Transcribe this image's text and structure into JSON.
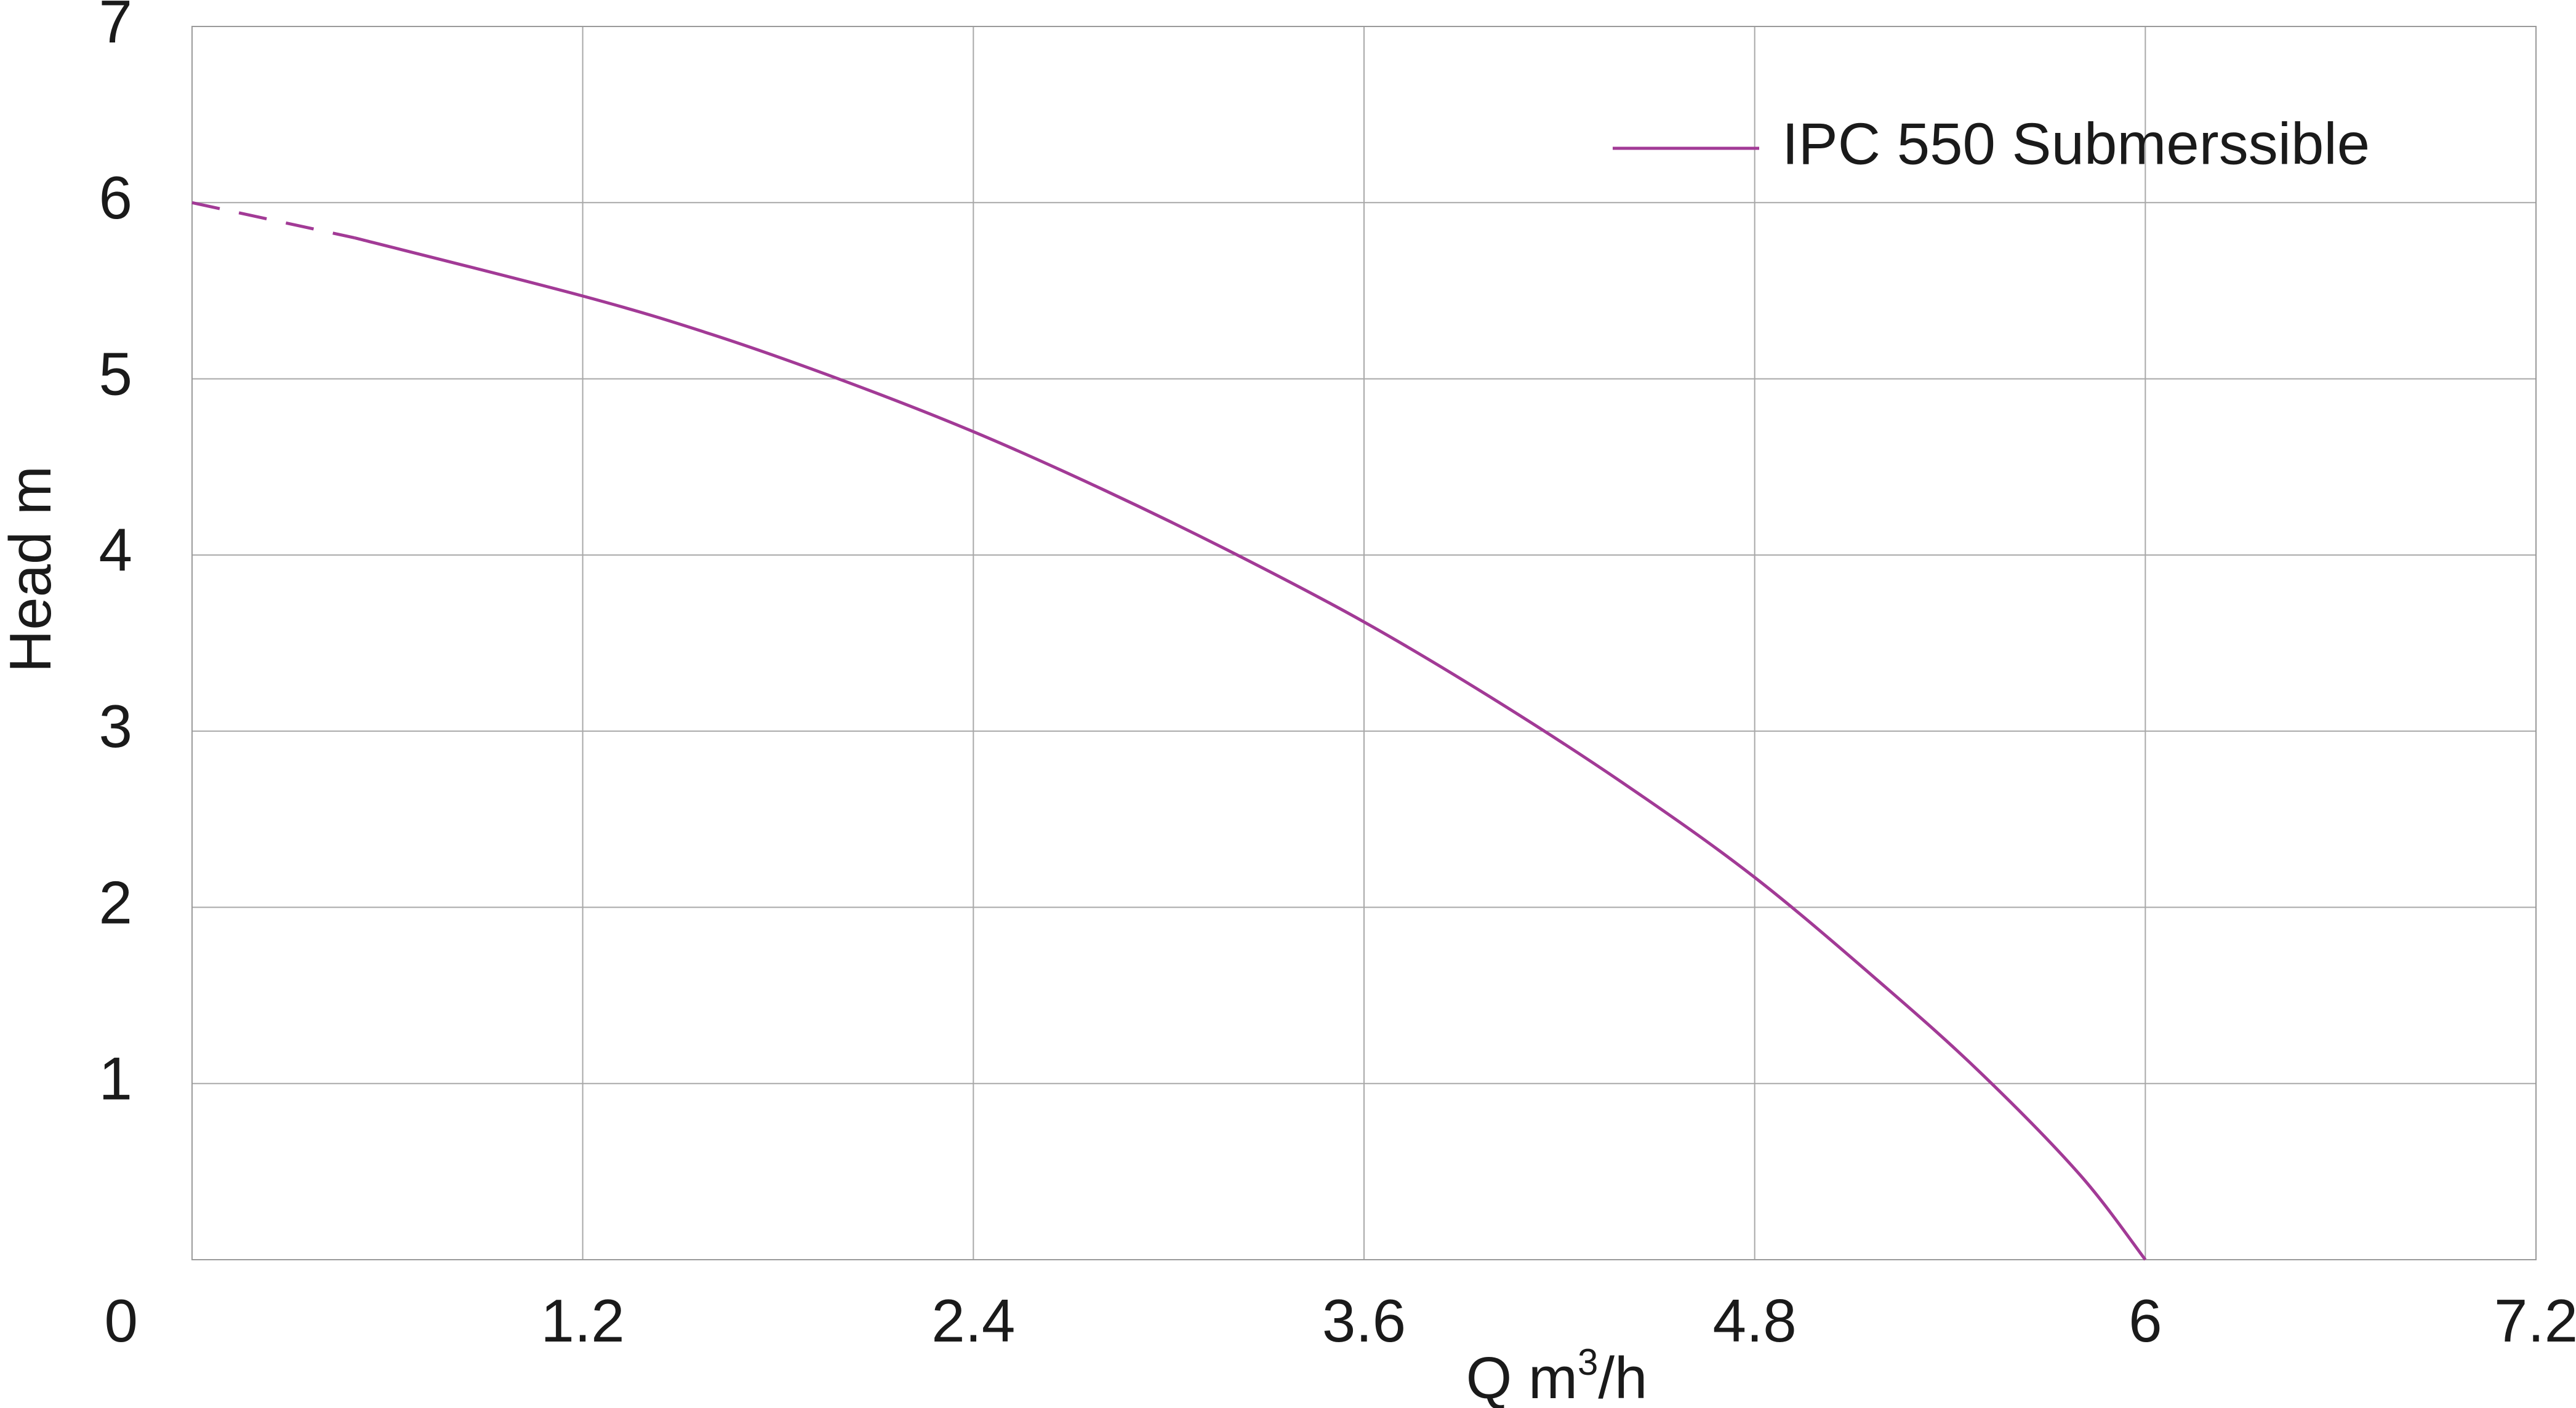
{
  "chart_data": {
    "type": "line",
    "title": "",
    "xlabel": "Q m3/h",
    "xlabel_parts": {
      "main": "Q m",
      "sup": "3",
      "tail": "/h"
    },
    "ylabel": "Head m",
    "xlim": [
      0,
      7.2
    ],
    "ylim": [
      0,
      7
    ],
    "x_ticks": [
      {
        "value": 0,
        "label": "0"
      },
      {
        "value": 1.2,
        "label": "1.2"
      },
      {
        "value": 2.4,
        "label": "2.4"
      },
      {
        "value": 3.6,
        "label": "3.6"
      },
      {
        "value": 4.8,
        "label": "4.8"
      },
      {
        "value": 6,
        "label": "6"
      },
      {
        "value": 7.2,
        "label": "7.2"
      }
    ],
    "y_ticks": [
      {
        "value": 1,
        "label": "1"
      },
      {
        "value": 2,
        "label": "2"
      },
      {
        "value": 3,
        "label": "3"
      },
      {
        "value": 4,
        "label": "4"
      },
      {
        "value": 5,
        "label": "5"
      },
      {
        "value": 6,
        "label": "6"
      },
      {
        "value": 7,
        "label": "7"
      }
    ],
    "grid": true,
    "legend_position": "top-right",
    "series": [
      {
        "name": "IPC 550 Submerssible",
        "color": "#a23a96",
        "dashed_until_x": 0.5,
        "x": [
          0,
          0.5,
          1.2,
          1.6,
          2.0,
          2.4,
          2.8,
          3.2,
          3.6,
          4.0,
          4.4,
          4.8,
          5.2,
          5.5,
          5.8,
          6.0
        ],
        "y": [
          6.0,
          5.8,
          5.47,
          5.25,
          4.99,
          4.7,
          4.37,
          4.01,
          3.62,
          3.18,
          2.7,
          2.17,
          1.55,
          1.05,
          0.48,
          0.0
        ]
      }
    ]
  }
}
